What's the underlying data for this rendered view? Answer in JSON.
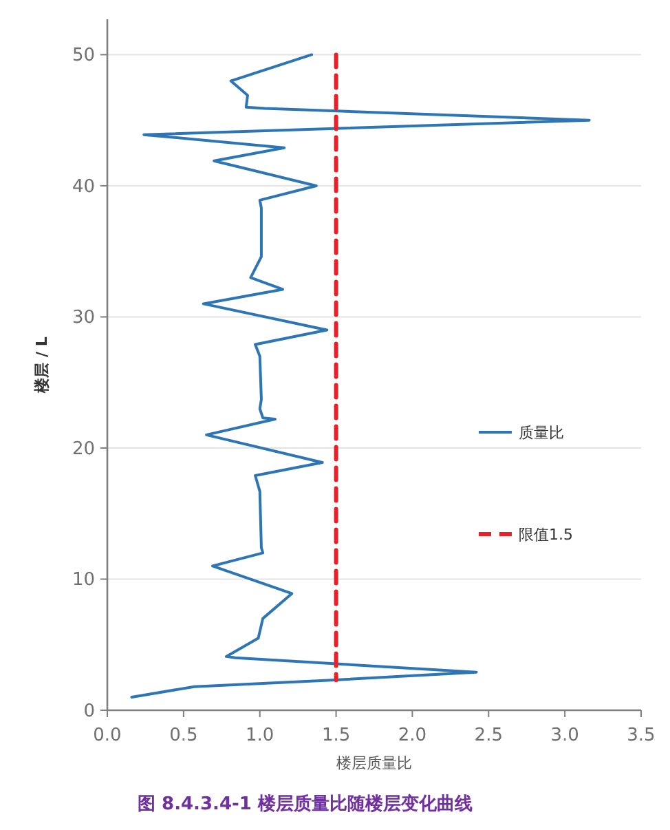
{
  "chart_data": {
    "type": "line",
    "title": "图 8.4.3.4-1  楼层质量比随楼层变化曲线",
    "xlabel": "楼层质量比",
    "ylabel": "楼层 / L",
    "series": [
      {
        "name": "质量比",
        "color": "#2e75b6",
        "x": [
          1.34,
          0.81,
          0.92,
          0.91,
          1.03,
          3.16,
          0.24,
          1.16,
          0.7,
          1.37,
          1.0,
          1.01,
          1.01,
          0.94,
          1.15,
          0.63,
          1.44,
          0.97,
          1.0,
          1.01,
          1.0,
          1.02,
          1.1,
          0.65,
          1.41,
          0.97,
          1.0,
          1.01,
          1.02,
          0.69,
          1.21,
          1.02,
          0.99,
          0.78,
          0.84,
          2.42,
          1.47,
          0.57,
          0.16
        ],
        "values": [
          50,
          48.0,
          46.9,
          46.0,
          45.9,
          45.0,
          43.9,
          42.9,
          41.9,
          40.0,
          38.9,
          38.3,
          34.6,
          33.0,
          32.1,
          31.0,
          29.0,
          27.9,
          27.0,
          23.7,
          23.0,
          22.3,
          22.2,
          21.0,
          18.9,
          17.9,
          16.7,
          12.4,
          12.0,
          11.0,
          8.9,
          7.0,
          5.5,
          4.1,
          4.0,
          2.9,
          2.3,
          1.8,
          1.0
        ]
      },
      {
        "name": "限值1.5",
        "color": "#e8202a",
        "line_style": "dashed",
        "x": [
          1.5,
          1.5
        ],
        "values": [
          50,
          2.3
        ]
      }
    ],
    "xlim": [
      0,
      3.5
    ],
    "ylim": [
      0,
      52.7
    ],
    "xticks": [
      {
        "value": 0,
        "label": "0.0"
      },
      {
        "value": 0.5,
        "label": "0.5"
      },
      {
        "value": 1,
        "label": "1.0"
      },
      {
        "value": 1.5,
        "label": "1.5"
      },
      {
        "value": 2,
        "label": "2.0"
      },
      {
        "value": 2.5,
        "label": "2.5"
      },
      {
        "value": 3,
        "label": "3.0"
      },
      {
        "value": 3.5,
        "label": "3.5"
      }
    ],
    "yticks": [
      0,
      10,
      20,
      30,
      40,
      50
    ],
    "grid": "y",
    "legend": "right",
    "marker": "none",
    "line_style": "solid"
  }
}
